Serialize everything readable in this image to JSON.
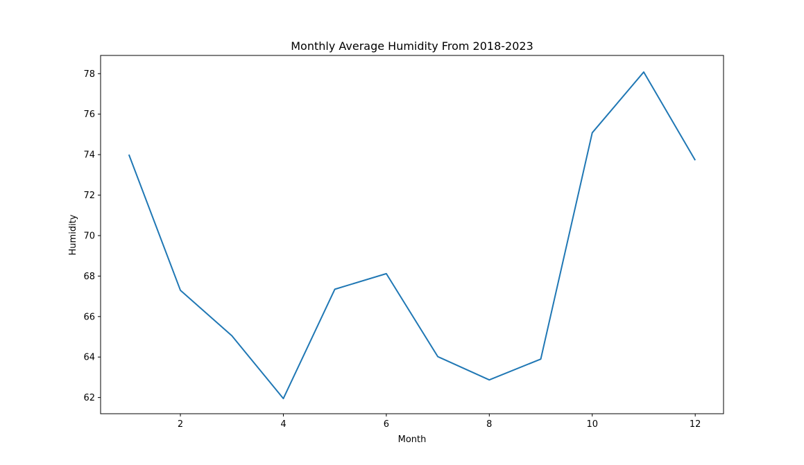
{
  "chart_data": {
    "type": "line",
    "title": "Monthly Average Humidity From 2018-2023",
    "xlabel": "Month",
    "ylabel": "Humidity",
    "xlim": [
      0.45,
      12.55
    ],
    "ylim": [
      61.2,
      78.9
    ],
    "xticks": [
      2,
      4,
      6,
      8,
      10,
      12
    ],
    "yticks": [
      62,
      64,
      66,
      68,
      70,
      72,
      74,
      76,
      78
    ],
    "grid": false,
    "legend": "none",
    "series": [
      {
        "color": "#1f77b4",
        "x": [
          1,
          2,
          3,
          4,
          5,
          6,
          7,
          8,
          9,
          10,
          11,
          12
        ],
        "values": [
          74.0,
          67.3,
          65.05,
          61.95,
          67.35,
          68.12,
          64.02,
          62.87,
          63.9,
          75.08,
          78.08,
          73.72
        ]
      }
    ]
  }
}
